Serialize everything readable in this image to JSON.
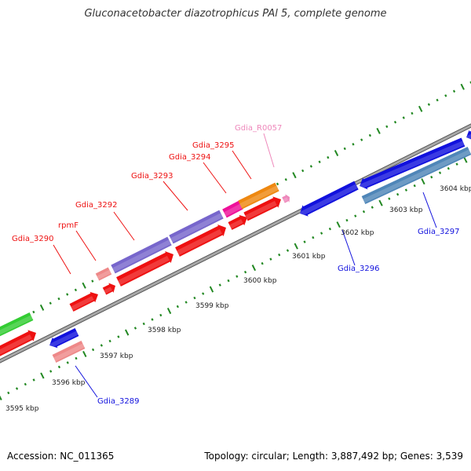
{
  "title": "Gluconacetobacter diazotrophicus PAl 5, complete genome",
  "footer": {
    "accession": "Accession: NC_011365",
    "summary": "Topology: circular; Length: 3,887,492 bp; Genes: 3,539"
  },
  "colors": {
    "red": "#ee1111",
    "blue": "#1111dd",
    "steelblue": "#4f86b8",
    "purple": "#7766cc",
    "green": "#33cc33",
    "pink": "#ee8888",
    "magenta": "#ee1199",
    "orange": "#ee8811",
    "lightpink": "#ee88bb",
    "tick": "#228822",
    "backbone": "#888888"
  },
  "kbp_ticks": [
    {
      "label": "3595 kbp"
    },
    {
      "label": "3596 kbp"
    },
    {
      "label": "3597 kbp"
    },
    {
      "label": "3598 kbp"
    },
    {
      "label": "3599 kbp"
    },
    {
      "label": "3600 kbp"
    },
    {
      "label": "3601 kbp"
    },
    {
      "label": "3602 kbp"
    },
    {
      "label": "3603 kbp"
    },
    {
      "label": "3604 kbp"
    }
  ],
  "gene_labels": [
    {
      "label": "Gdia_3290",
      "color": "red"
    },
    {
      "label": "rpmF",
      "color": "red"
    },
    {
      "label": "Gdia_3292",
      "color": "red"
    },
    {
      "label": "Gdia_3293",
      "color": "red"
    },
    {
      "label": "Gdia_3294",
      "color": "red"
    },
    {
      "label": "Gdia_3295",
      "color": "red"
    },
    {
      "label": "Gdia_R0057",
      "color": "lightpink"
    },
    {
      "label": "Gdia_3296",
      "color": "blue"
    },
    {
      "label": "Gdia_3297",
      "color": "blue"
    },
    {
      "label": "Gdia_3289",
      "color": "blue"
    }
  ],
  "features": [
    {
      "name": "green-gene",
      "color": "green"
    },
    {
      "name": "red-gene-lower-left",
      "color": "red"
    },
    {
      "name": "blue-gene-3289",
      "color": "blue"
    },
    {
      "name": "pink-gene-3289",
      "color": "pink"
    },
    {
      "name": "red-gene-3290",
      "color": "red"
    },
    {
      "name": "pink-gene-rpmF",
      "color": "pink"
    },
    {
      "name": "red-gene-rpmF",
      "color": "red"
    },
    {
      "name": "purple-gene-3292",
      "color": "purple"
    },
    {
      "name": "red-gene-3292",
      "color": "red"
    },
    {
      "name": "purple-gene-3293",
      "color": "purple"
    },
    {
      "name": "red-gene-3293",
      "color": "red"
    },
    {
      "name": "magenta-gene-3294",
      "color": "magenta"
    },
    {
      "name": "red-gene-3294",
      "color": "red"
    },
    {
      "name": "orange-gene-3295",
      "color": "orange"
    },
    {
      "name": "red-gene-3295",
      "color": "red"
    },
    {
      "name": "rna-gene-R0057",
      "color": "lightpink"
    },
    {
      "name": "blue-gene-3296",
      "color": "blue"
    },
    {
      "name": "blue-gene-3297a",
      "color": "blue"
    },
    {
      "name": "steelblue-gene-3297",
      "color": "steelblue"
    },
    {
      "name": "blue-gene-edge",
      "color": "blue"
    }
  ]
}
